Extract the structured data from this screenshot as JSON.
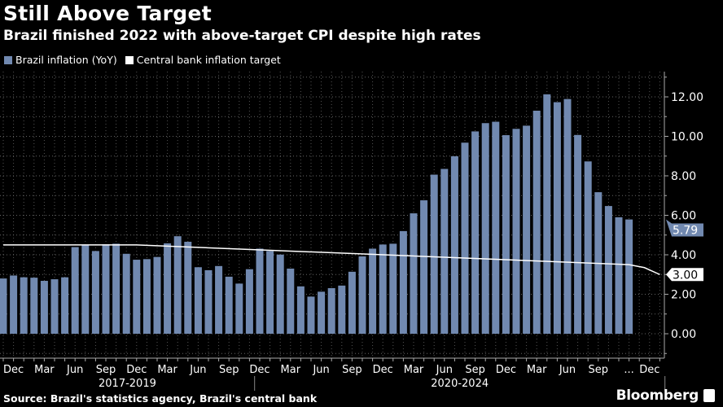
{
  "header": {
    "title": "Still Above Target",
    "subtitle": "Brazil finished 2022 with above-target CPI despite high rates"
  },
  "footer": {
    "source": "Source: Brazil's statistics agency, Brazil's central bank",
    "brand": "Bloomberg"
  },
  "colors": {
    "bar": "#7189b0",
    "target": "#ffffff",
    "background": "#000000"
  },
  "chart_data": {
    "type": "bar",
    "title": "Still Above Target",
    "subtitle": "Brazil finished 2022 with above-target CPI despite high rates",
    "xlabel": "",
    "ylabel": "",
    "ylim": [
      -1,
      13.3
    ],
    "yticks": [
      0,
      2,
      4,
      6,
      8,
      10,
      12
    ],
    "ytick_labels": [
      "0.00",
      "2.00",
      "4.00",
      "6.00",
      "8.00",
      "10.00",
      "12.00"
    ],
    "grid": true,
    "legend": {
      "placement": "top-left",
      "entries": [
        "Brazil inflation (YoY)",
        "Central bank inflation target"
      ]
    },
    "x_range": [
      -0.3,
      64.5
    ],
    "categories": [
      "Nov 2017",
      "Dec 2017",
      "Jan 2018",
      "Feb 2018",
      "Mar 2018",
      "Apr 2018",
      "May 2018",
      "Jun 2018",
      "Jul 2018",
      "Aug 2018",
      "Sep 2018",
      "Oct 2018",
      "Nov 2018",
      "Dec 2018",
      "Jan 2019",
      "Feb 2019",
      "Mar 2019",
      "Apr 2019",
      "May 2019",
      "Jun 2019",
      "Jul 2019",
      "Aug 2019",
      "Sep 2019",
      "Oct 2019",
      "Nov 2019",
      "Dec 2019",
      "Jan 2020",
      "Feb 2020",
      "Mar 2020",
      "Apr 2020",
      "May 2020",
      "Jun 2020",
      "Jul 2020",
      "Aug 2020",
      "Sep 2020",
      "Oct 2020",
      "Nov 2020",
      "Dec 2020",
      "Jan 2021",
      "Feb 2021",
      "Mar 2021",
      "Apr 2021",
      "May 2021",
      "Jun 2021",
      "Jul 2021",
      "Aug 2021",
      "Sep 2021",
      "Oct 2021",
      "Nov 2021",
      "Dec 2021",
      "Jan 2022",
      "Feb 2022",
      "Mar 2022",
      "Apr 2022",
      "May 2022",
      "Jun 2022",
      "Jul 2022",
      "Aug 2022",
      "Sep 2022",
      "Oct 2022",
      "Nov 2022",
      "Dec 2022"
    ],
    "series": [
      {
        "name": "Brazil inflation (YoY)",
        "type": "bar",
        "values": [
          2.8,
          2.95,
          2.86,
          2.84,
          2.68,
          2.76,
          2.86,
          4.39,
          4.48,
          4.19,
          4.53,
          4.56,
          4.05,
          3.75,
          3.78,
          3.89,
          4.58,
          4.94,
          4.66,
          3.37,
          3.22,
          3.43,
          2.89,
          2.54,
          3.27,
          4.31,
          4.19,
          4.01,
          3.3,
          2.4,
          1.88,
          2.13,
          2.31,
          2.44,
          3.14,
          3.92,
          4.31,
          4.52,
          4.56,
          5.2,
          6.1,
          6.76,
          8.06,
          8.35,
          8.99,
          9.68,
          10.25,
          10.67,
          10.74,
          10.06,
          10.38,
          10.54,
          11.3,
          12.13,
          11.73,
          11.89,
          10.07,
          8.73,
          7.17,
          6.47,
          5.9,
          5.79
        ]
      },
      {
        "name": "Central bank inflation target",
        "type": "line",
        "points": [
          [
            0,
            4.5
          ],
          [
            13,
            4.5
          ],
          [
            61,
            3.5
          ],
          [
            62.5,
            3.35
          ],
          [
            64,
            3.0
          ]
        ]
      }
    ],
    "x_tick_labels": [
      {
        "i": 1,
        "label": "Dec"
      },
      {
        "i": 4,
        "label": "Mar"
      },
      {
        "i": 7,
        "label": "Jun"
      },
      {
        "i": 10,
        "label": "Sep"
      },
      {
        "i": 13,
        "label": "Dec"
      },
      {
        "i": 16,
        "label": "Mar"
      },
      {
        "i": 19,
        "label": "Jun"
      },
      {
        "i": 22,
        "label": "Sep"
      },
      {
        "i": 25,
        "label": "Dec"
      },
      {
        "i": 28,
        "label": "Mar"
      },
      {
        "i": 31,
        "label": "Jun"
      },
      {
        "i": 34,
        "label": "Sep"
      },
      {
        "i": 37,
        "label": "Dec"
      },
      {
        "i": 40,
        "label": "Mar"
      },
      {
        "i": 43,
        "label": "Jun"
      },
      {
        "i": 46,
        "label": "Sep"
      },
      {
        "i": 49,
        "label": "Dec"
      },
      {
        "i": 52,
        "label": "Mar"
      },
      {
        "i": 55,
        "label": "Jun"
      },
      {
        "i": 58,
        "label": "Sep"
      },
      {
        "i": 61,
        "label": "..."
      },
      {
        "i": 63,
        "label": "Dec"
      }
    ],
    "x_groups": [
      {
        "label": "2017-2019",
        "start": -0.3,
        "end": 24.5
      },
      {
        "label": "2020-2024",
        "start": 24.5,
        "end": 64.5
      }
    ],
    "last_value_labels": [
      {
        "series": "Brazil inflation (YoY)",
        "value": 5.79,
        "label": "5.79"
      },
      {
        "series": "Central bank inflation target",
        "value": 3.0,
        "label": "3.00"
      }
    ]
  }
}
